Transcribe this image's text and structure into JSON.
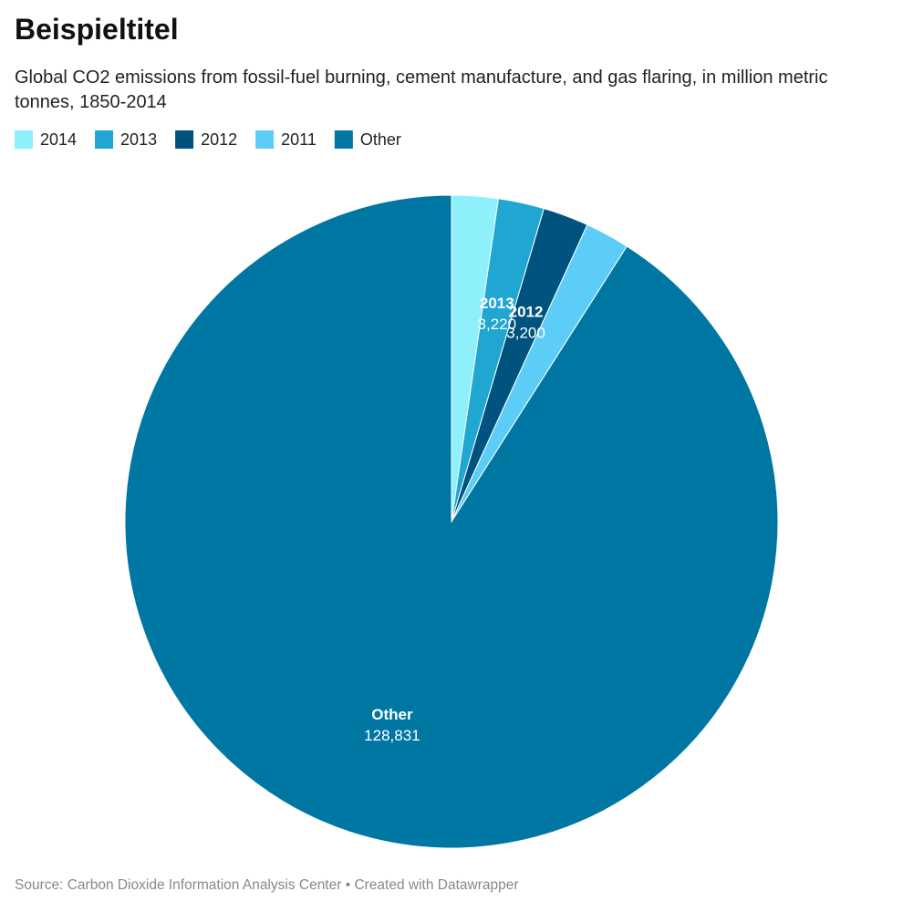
{
  "chart_data": {
    "type": "pie",
    "title": "Beispieltitel",
    "subtitle": "Global CO2 emissions from fossil-fuel burning, cement manufacture, and gas flaring, in million metric tonnes, 1850-2014",
    "source": "Source: Carbon Dioxide Information Analysis Center • Created with Datawrapper",
    "categories": [
      "2014",
      "2013",
      "2012",
      "2011",
      "Other"
    ],
    "values": [
      3250,
      3220,
      3200,
      3110,
      128831
    ],
    "value_labels": [
      null,
      "3,220",
      "3,200",
      null,
      "128,831"
    ],
    "colors": [
      "#8df0fb",
      "#1fa6d1",
      "#00527f",
      "#5ccdf7",
      "#0077a3"
    ],
    "legend": "top-left"
  }
}
